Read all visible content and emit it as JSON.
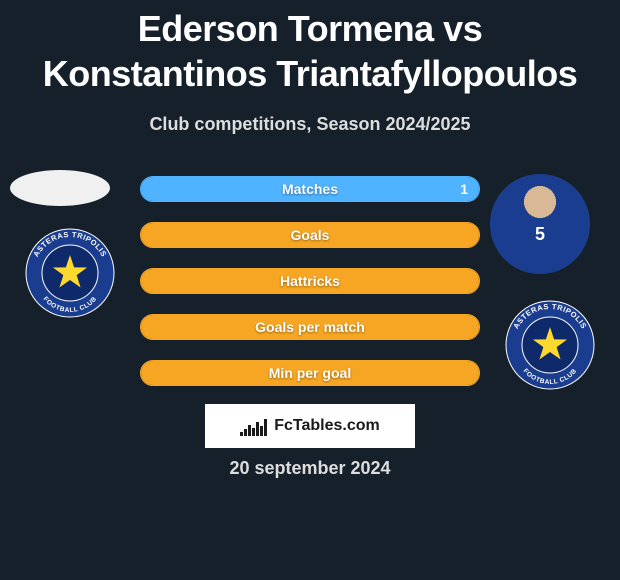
{
  "title": "Ederson Tormena vs Konstantinos Triantafyllopoulos",
  "subtitle": "Club competitions, Season 2024/2025",
  "date": "20 september 2024",
  "fctables": "FcTables.com",
  "colors": {
    "background": "#15202b",
    "bar_neutral": "#3a3f44",
    "bar_left": "#f6a623",
    "bar_right": "#4fb3ff",
    "text": "#ffffff",
    "subtitle": "#dddddd",
    "panel": "#ffffff"
  },
  "club_badge": {
    "name": "Asteras Tripolis",
    "ring_color": "#1a3d8f",
    "fill_color": "#0f2a6a",
    "star_color": "#ffd92e",
    "text_top": "ASTERAS TRIPOLIS",
    "text_bottom": "FOOTBALL CLUB"
  },
  "bars": [
    {
      "label": "Matches",
      "left": null,
      "right": 1,
      "left_pct": 0,
      "right_pct": 100
    },
    {
      "label": "Goals",
      "left": null,
      "right": null,
      "left_pct": 50,
      "right_pct": 50
    },
    {
      "label": "Hattricks",
      "left": null,
      "right": null,
      "left_pct": 50,
      "right_pct": 50
    },
    {
      "label": "Goals per match",
      "left": null,
      "right": null,
      "left_pct": 50,
      "right_pct": 50
    },
    {
      "label": "Min per goal",
      "left": null,
      "right": null,
      "left_pct": 50,
      "right_pct": 50
    }
  ],
  "fctables_icon_bars": [
    4,
    7,
    11,
    8,
    14,
    10,
    17
  ]
}
